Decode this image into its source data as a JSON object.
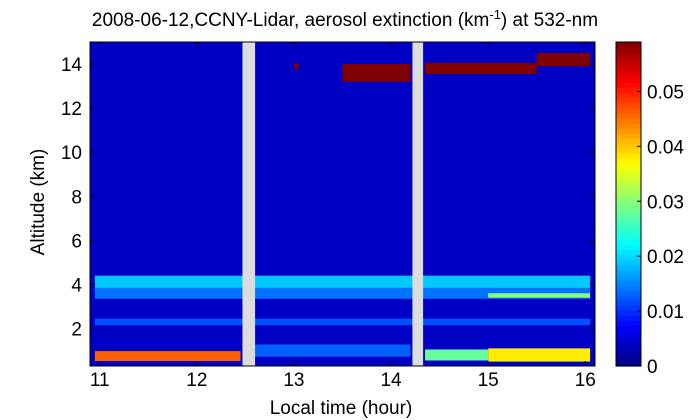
{
  "chart_data": {
    "type": "heatmap",
    "title": "2008-06-12,CCNY-Lidar, aerosol extinction (km",
    "title_unit_exp": "-1",
    "title_suffix": ") at 532-nm",
    "xlabel": "Local time (hour)",
    "ylabel": "Altitude (km)",
    "xlim": [
      10.9,
      16.1
    ],
    "ylim": [
      0.3,
      15.0
    ],
    "x_ticks": [
      {
        "value": 11,
        "label": "11"
      },
      {
        "value": 12,
        "label": "12"
      },
      {
        "value": 13,
        "label": "13"
      },
      {
        "value": 14,
        "label": "14"
      },
      {
        "value": 15,
        "label": "15"
      },
      {
        "value": 16,
        "label": "16"
      }
    ],
    "y_ticks": [
      {
        "value": 2,
        "label": "2"
      },
      {
        "value": 4,
        "label": "4"
      },
      {
        "value": 6,
        "label": "6"
      },
      {
        "value": 8,
        "label": "8"
      },
      {
        "value": 10,
        "label": "10"
      },
      {
        "value": 12,
        "label": "12"
      },
      {
        "value": 14,
        "label": "14"
      }
    ],
    "colorbar": {
      "colormap": "jet",
      "clim": [
        0,
        0.059
      ],
      "ticks": [
        {
          "value": 0,
          "label": "0"
        },
        {
          "value": 0.01,
          "label": "0.01"
        },
        {
          "value": 0.02,
          "label": "0.02"
        },
        {
          "value": 0.03,
          "label": "0.03"
        },
        {
          "value": 0.04,
          "label": "0.04"
        },
        {
          "value": 0.05,
          "label": "0.05"
        }
      ]
    },
    "data_gaps": [
      [
        12.47,
        12.6
      ],
      [
        14.22,
        14.33
      ]
    ],
    "background_value": 0.004,
    "features": [
      {
        "x": [
          10.95,
          16.05
        ],
        "y_center": 4.0,
        "thickness": 0.8,
        "value": 0.019
      },
      {
        "x": [
          10.95,
          16.05
        ],
        "y_center": 3.6,
        "thickness": 0.5,
        "value": 0.014
      },
      {
        "x": [
          10.95,
          16.05
        ],
        "y_center": 2.3,
        "thickness": 0.3,
        "value": 0.012
      },
      {
        "x": [
          10.95,
          12.45
        ],
        "y_center": 0.75,
        "thickness": 0.45,
        "value": 0.046
      },
      {
        "x": [
          12.6,
          14.2
        ],
        "y_center": 1.0,
        "thickness": 0.55,
        "value": 0.013
      },
      {
        "x": [
          14.35,
          15.0
        ],
        "y_center": 0.8,
        "thickness": 0.5,
        "value": 0.028
      },
      {
        "x": [
          15.0,
          16.05
        ],
        "y_center": 0.8,
        "thickness": 0.6,
        "value": 0.038
      },
      {
        "x": [
          15.0,
          16.05
        ],
        "y_center": 3.5,
        "thickness": 0.2,
        "value": 0.03
      },
      {
        "x": [
          13.5,
          14.2
        ],
        "y_center": 13.6,
        "thickness": 0.8,
        "value": 0.059
      },
      {
        "x": [
          14.35,
          15.5
        ],
        "y_center": 13.8,
        "thickness": 0.5,
        "value": 0.059
      },
      {
        "x": [
          15.5,
          16.05
        ],
        "y_center": 14.2,
        "thickness": 0.6,
        "value": 0.059
      },
      {
        "x": [
          13.0,
          13.05
        ],
        "y_center": 13.9,
        "thickness": 0.25,
        "value": 0.059
      }
    ]
  }
}
